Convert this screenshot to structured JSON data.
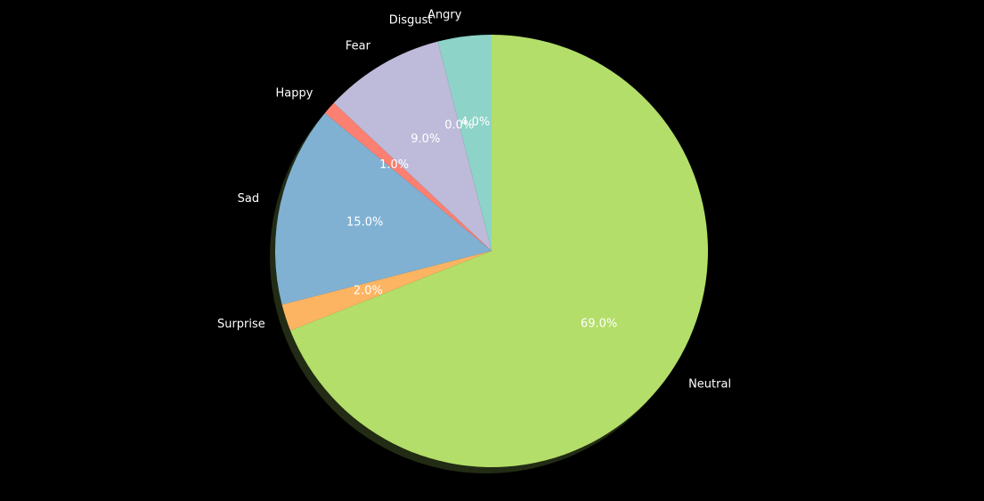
{
  "chart_data": {
    "type": "pie",
    "title": "",
    "categories": [
      "Angry",
      "Disgust",
      "Fear",
      "Happy",
      "Sad",
      "Surprise",
      "Neutral"
    ],
    "values": [
      4.0,
      0.0,
      9.0,
      1.0,
      15.0,
      2.0,
      69.0
    ],
    "percent_labels": [
      "4.0%",
      "0.0%",
      "9.0%",
      "1.0%",
      "15.0%",
      "2.0%",
      "69.0%"
    ],
    "colors": [
      "#8dd3c7",
      "#ffffb3",
      "#bebada",
      "#fb8072",
      "#80b1d3",
      "#fdb462",
      "#b3de69"
    ],
    "start_angle_deg": 90,
    "direction": "counterclockwise",
    "shadow": true,
    "background": "#000000",
    "text_color": "#ffffff"
  }
}
